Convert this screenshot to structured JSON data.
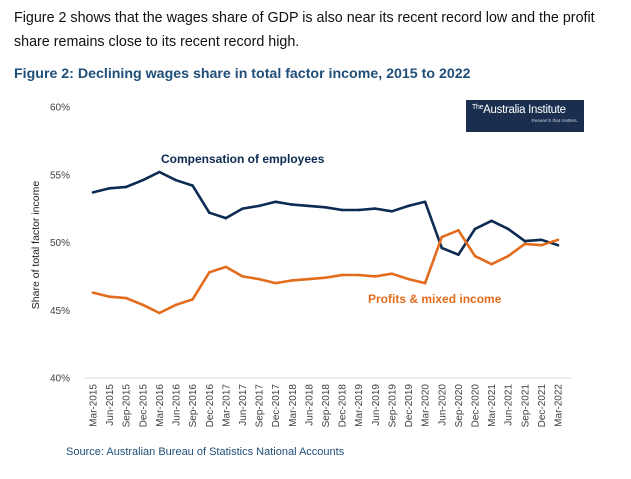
{
  "intro_text": "Figure 2 shows that the wages share of GDP is also near its recent record low and the profit share remains close to its recent record high.",
  "figure_title": "Figure 2: Declining wages share in total factor income, 2015 to 2022",
  "logo": {
    "the": "The",
    "name": "Australia Institute",
    "tagline": "Research that matters."
  },
  "source": "Source: Australian Bureau of Statistics National Accounts",
  "colors": {
    "compensation": "#0d2a52",
    "profits": "#e36c1c",
    "title": "#1f4e79"
  },
  "chart_data": {
    "type": "line",
    "title": "Figure 2: Declining wages share in total factor income, 2015 to 2022",
    "xlabel": "",
    "ylabel": "Share of total factor income",
    "ylim": [
      40,
      60
    ],
    "yticks": [
      "40%",
      "45%",
      "50%",
      "55%",
      "60%"
    ],
    "ytick_values": [
      40,
      45,
      50,
      55,
      60
    ],
    "categories": [
      "Mar-2015",
      "Jun-2015",
      "Sep-2015",
      "Dec-2015",
      "Mar-2016",
      "Jun-2016",
      "Sep-2016",
      "Dec-2016",
      "Mar-2017",
      "Jun-2017",
      "Sep-2017",
      "Dec-2017",
      "Mar-2018",
      "Jun-2018",
      "Sep-2018",
      "Dec-2018",
      "Mar-2019",
      "Jun-2019",
      "Sep-2019",
      "Dec-2019",
      "Mar-2020",
      "Jun-2020",
      "Sep-2020",
      "Dec-2020",
      "Mar-2021",
      "Jun-2021",
      "Sep-2021",
      "Dec-2021",
      "Mar-2022"
    ],
    "series": [
      {
        "name": "Compensation of employees",
        "values": [
          53.7,
          54.0,
          54.1,
          54.6,
          55.2,
          54.6,
          54.2,
          52.2,
          51.8,
          52.5,
          52.7,
          53.0,
          52.8,
          52.7,
          52.6,
          52.4,
          52.4,
          52.5,
          52.3,
          52.7,
          53.0,
          49.6,
          49.1,
          51.0,
          51.6,
          51.0,
          50.1,
          50.2,
          49.8
        ]
      },
      {
        "name": "Profits & mixed income",
        "values": [
          46.3,
          46.0,
          45.9,
          45.4,
          44.8,
          45.4,
          45.8,
          47.8,
          48.2,
          47.5,
          47.3,
          47.0,
          47.2,
          47.3,
          47.4,
          47.6,
          47.6,
          47.5,
          47.7,
          47.3,
          47.0,
          50.4,
          50.9,
          49.0,
          48.4,
          49.0,
          49.9,
          49.8,
          50.2
        ]
      }
    ]
  }
}
